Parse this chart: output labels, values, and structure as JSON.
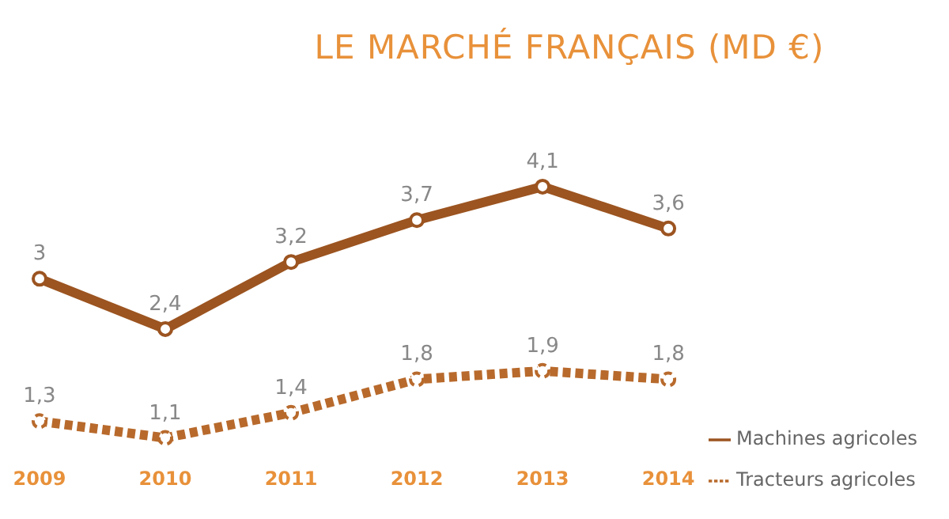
{
  "chart_data": {
    "type": "line",
    "title": "LE MARCHÉ FRANÇAIS (MD €)",
    "categories": [
      "2009",
      "2010",
      "2011",
      "2012",
      "2013",
      "2014"
    ],
    "series": [
      {
        "name": "Machines agricoles",
        "color": "#9c5420",
        "values": [
          3,
          2.4,
          3.2,
          3.7,
          4.1,
          3.6
        ],
        "value_labels": [
          "3",
          "2,4",
          "3,2",
          "3,7",
          "4,1",
          "3,6"
        ],
        "line_style": "solid"
      },
      {
        "name": "Tracteurs agricoles",
        "color": "#b86a2c",
        "values": [
          1.3,
          1.1,
          1.4,
          1.8,
          1.9,
          1.8
        ],
        "value_labels": [
          "1,3",
          "1,1",
          "1,4",
          "1,8",
          "1,9",
          "1,8"
        ],
        "line_style": "dashed"
      }
    ],
    "legend": "bottom right",
    "grid": false,
    "marker": "circle"
  }
}
